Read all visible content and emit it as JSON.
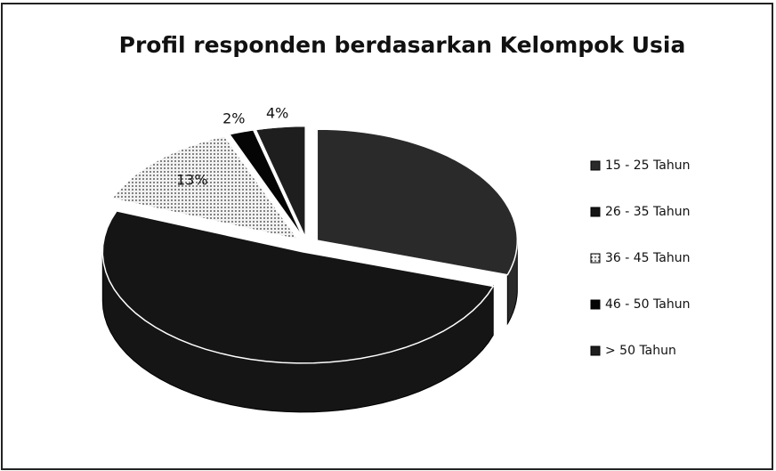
{
  "chart_data": {
    "type": "pie",
    "title": "Profil responden berdasarkan Kelompok Usia",
    "categories": [
      "15 - 25 Tahun",
      "26 - 35 Tahun",
      "36 - 45 Tahun",
      "46 - 50 Tahun",
      "> 50 Tahun"
    ],
    "values": [
      30,
      51,
      13,
      2,
      4
    ],
    "value_labels": [
      null,
      null,
      "13%",
      "2%",
      "4%"
    ],
    "colors": [
      "#2a2a2a",
      "#151515",
      "url(#dots)",
      "#050505",
      "#1e1e1e"
    ],
    "legend": "right"
  }
}
